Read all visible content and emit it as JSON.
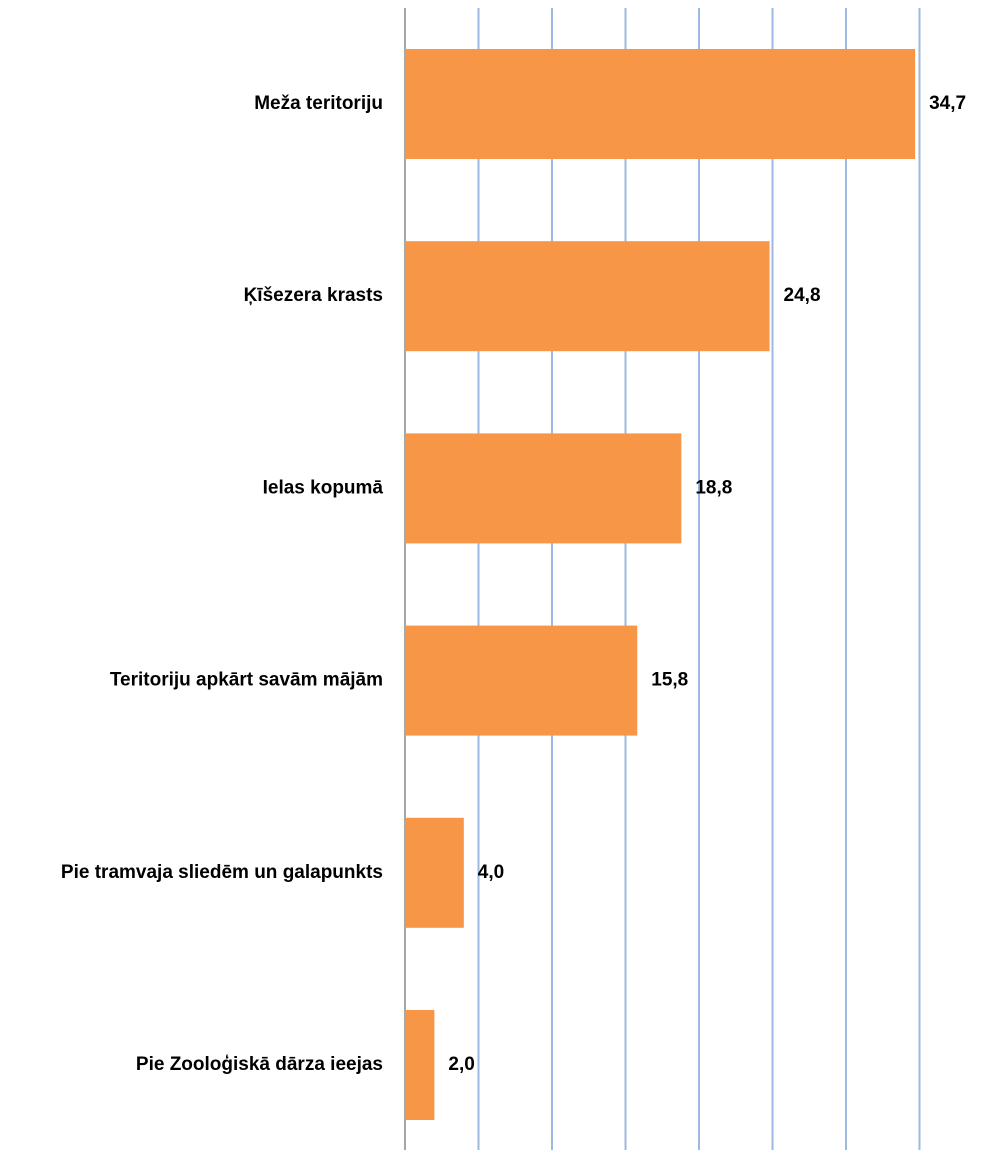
{
  "chart_data": {
    "type": "bar",
    "orientation": "horizontal",
    "categories": [
      "Meža teritoriju",
      "Ķīšezera krasts",
      "Ielas kopumā",
      "Teritoriju apkārt savām mājām",
      "Pie tramvaja sliedēm un galapunkts",
      "Pie Zooloģiskā dārza ieejas"
    ],
    "values": [
      34.7,
      24.8,
      18.8,
      15.8,
      4.0,
      2.0
    ],
    "value_labels": [
      "34,7",
      "24,8",
      "18,8",
      "15,8",
      "4,0",
      "2,0"
    ],
    "title": "",
    "xlabel": "",
    "ylabel": "",
    "xlim": [
      0,
      35
    ],
    "gridlines": "vertical",
    "grid_step": 5,
    "legend": "none",
    "colors": {
      "bar": "#F79646",
      "gridline": "#9DB9E1",
      "axis": "#A6A6A6"
    }
  }
}
